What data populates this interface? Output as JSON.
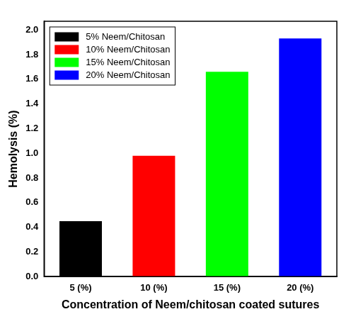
{
  "chart_data": {
    "type": "bar",
    "x_label": "Concentration of Neem/chitosan coated sutures",
    "y_label": "Hemolysis (%)",
    "categories": [
      "5 (%)",
      "10 (%)",
      "15 (%)",
      "20 (%)"
    ],
    "series": [
      {
        "name": "5% Neem/Chitosan",
        "color": "#000000",
        "values": [
          0.45,
          null,
          null,
          null
        ]
      },
      {
        "name": "10% Neem/Chitosan",
        "color": "#ff0000",
        "values": [
          null,
          0.98,
          null,
          null
        ]
      },
      {
        "name": "15% Neem/Chitosan",
        "color": "#00ff00",
        "values": [
          null,
          null,
          1.66,
          null
        ]
      },
      {
        "name": "20% Neem/Chitosan",
        "color": "#0000ff",
        "values": [
          null,
          null,
          null,
          1.93
        ]
      }
    ],
    "ylim": [
      0,
      2.07
    ],
    "yticks": [
      {
        "value": 0,
        "label": "0.0"
      },
      {
        "value": 0.2,
        "label": "0.2"
      },
      {
        "value": 0.4,
        "label": "0.4"
      },
      {
        "value": 0.6,
        "label": "0.6"
      },
      {
        "value": 0.8,
        "label": "0.8"
      },
      {
        "value": 1,
        "label": "1.0"
      },
      {
        "value": 1.2,
        "label": "1.2"
      },
      {
        "value": 1.4,
        "label": "1.4"
      },
      {
        "value": 1.6,
        "label": "1.6"
      },
      {
        "value": 1.8,
        "label": "1.8"
      },
      {
        "value": 2,
        "label": "2.0"
      }
    ],
    "grid": false,
    "legend": "top-left"
  }
}
